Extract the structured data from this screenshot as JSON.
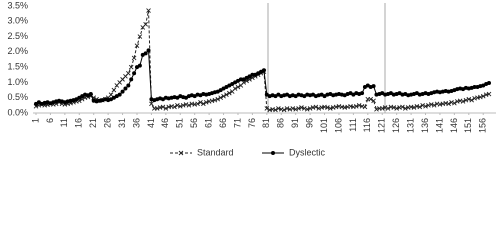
{
  "chart_data": {
    "type": "line",
    "categories": [
      "1",
      null,
      null,
      null,
      null,
      "6",
      null,
      null,
      null,
      null,
      "11",
      null,
      null,
      null,
      null,
      "16",
      null,
      null,
      null,
      null,
      "21",
      null,
      null,
      null,
      null,
      "26",
      null,
      null,
      null,
      null,
      "31",
      null,
      null,
      null,
      null,
      "36",
      null,
      null,
      null,
      null,
      "41",
      null,
      null,
      null,
      null,
      "46",
      null,
      null,
      null,
      null,
      "51",
      null,
      null,
      null,
      null,
      "56",
      null,
      null,
      null,
      null,
      "61",
      null,
      null,
      null,
      null,
      "66",
      null,
      null,
      null,
      null,
      "71",
      null,
      null,
      null,
      null,
      "76",
      null,
      null,
      null,
      null,
      "81",
      null,
      null,
      null,
      null,
      "86",
      null,
      null,
      null,
      null,
      "91",
      null,
      null,
      null,
      null,
      "96",
      null,
      null,
      null,
      null,
      "101",
      null,
      null,
      null,
      null,
      "106",
      null,
      null,
      null,
      null,
      "111",
      null,
      null,
      null,
      null,
      "116",
      null,
      null,
      null,
      null,
      "121",
      null,
      null,
      null,
      null,
      "126",
      null,
      null,
      null,
      null,
      "131",
      null,
      null,
      null,
      null,
      "136",
      null,
      null,
      null,
      null,
      "141",
      null,
      null,
      null,
      null,
      "146",
      null,
      null,
      null,
      null,
      "151",
      null,
      null,
      null,
      null,
      "156",
      null,
      null
    ],
    "series": [
      {
        "name": "Standard",
        "color": "#222222",
        "dashed": true,
        "marker": "x",
        "values": [
          0.22,
          0.25,
          0.28,
          0.25,
          0.27,
          0.3,
          0.28,
          0.3,
          0.35,
          0.3,
          0.28,
          0.3,
          0.32,
          0.35,
          0.38,
          0.4,
          0.45,
          0.5,
          0.52,
          0.55,
          0.5,
          0.45,
          0.4,
          0.42,
          0.45,
          0.5,
          0.6,
          0.75,
          0.9,
          1.0,
          1.1,
          1.2,
          1.3,
          1.5,
          1.8,
          2.2,
          2.5,
          2.8,
          2.9,
          3.35,
          0.3,
          0.15,
          0.15,
          0.18,
          0.2,
          0.15,
          0.2,
          0.22,
          0.2,
          0.25,
          0.22,
          0.25,
          0.28,
          0.25,
          0.3,
          0.28,
          0.3,
          0.35,
          0.3,
          0.35,
          0.38,
          0.4,
          0.42,
          0.45,
          0.5,
          0.55,
          0.6,
          0.65,
          0.7,
          0.8,
          0.85,
          0.9,
          1.0,
          1.05,
          1.1,
          1.15,
          1.2,
          1.25,
          1.3,
          1.35,
          0.15,
          0.1,
          0.12,
          0.1,
          0.15,
          0.12,
          0.1,
          0.15,
          0.12,
          0.15,
          0.12,
          0.15,
          0.18,
          0.15,
          0.12,
          0.15,
          0.18,
          0.2,
          0.15,
          0.18,
          0.2,
          0.18,
          0.15,
          0.18,
          0.2,
          0.22,
          0.2,
          0.18,
          0.2,
          0.22,
          0.2,
          0.22,
          0.25,
          0.22,
          0.2,
          0.45,
          0.45,
          0.4,
          0.12,
          0.15,
          0.15,
          0.18,
          0.15,
          0.2,
          0.18,
          0.15,
          0.18,
          0.2,
          0.15,
          0.18,
          0.2,
          0.18,
          0.22,
          0.2,
          0.25,
          0.22,
          0.25,
          0.28,
          0.25,
          0.3,
          0.28,
          0.3,
          0.32,
          0.3,
          0.35,
          0.32,
          0.38,
          0.4,
          0.38,
          0.42,
          0.45,
          0.42,
          0.48,
          0.5,
          0.52,
          0.55,
          0.6,
          0.62
        ]
      },
      {
        "name": "Dyslectic",
        "color": "#000000",
        "dashed": false,
        "marker": "circle",
        "values": [
          0.3,
          0.35,
          0.3,
          0.33,
          0.35,
          0.32,
          0.35,
          0.38,
          0.4,
          0.38,
          0.35,
          0.38,
          0.4,
          0.42,
          0.45,
          0.5,
          0.55,
          0.6,
          0.58,
          0.62,
          0.4,
          0.38,
          0.4,
          0.42,
          0.45,
          0.42,
          0.45,
          0.5,
          0.55,
          0.6,
          0.7,
          0.8,
          0.9,
          1.1,
          1.3,
          1.5,
          1.55,
          1.9,
          1.95,
          2.05,
          0.45,
          0.42,
          0.45,
          0.48,
          0.45,
          0.5,
          0.48,
          0.5,
          0.52,
          0.5,
          0.55,
          0.52,
          0.5,
          0.55,
          0.58,
          0.55,
          0.6,
          0.58,
          0.62,
          0.6,
          0.62,
          0.65,
          0.68,
          0.7,
          0.75,
          0.8,
          0.85,
          0.9,
          0.95,
          1.0,
          1.05,
          1.1,
          1.1,
          1.15,
          1.2,
          1.25,
          1.25,
          1.3,
          1.35,
          1.4,
          0.6,
          0.55,
          0.58,
          0.55,
          0.6,
          0.55,
          0.58,
          0.6,
          0.55,
          0.58,
          0.55,
          0.6,
          0.58,
          0.55,
          0.6,
          0.58,
          0.6,
          0.55,
          0.58,
          0.6,
          0.55,
          0.6,
          0.62,
          0.58,
          0.6,
          0.62,
          0.6,
          0.58,
          0.62,
          0.65,
          0.6,
          0.65,
          0.62,
          0.65,
          0.85,
          0.9,
          0.85,
          0.88,
          0.6,
          0.62,
          0.65,
          0.6,
          0.62,
          0.65,
          0.6,
          0.62,
          0.65,
          0.6,
          0.62,
          0.58,
          0.6,
          0.62,
          0.65,
          0.6,
          0.62,
          0.65,
          0.62,
          0.65,
          0.68,
          0.7,
          0.68,
          0.7,
          0.72,
          0.7,
          0.72,
          0.75,
          0.78,
          0.8,
          0.78,
          0.82,
          0.8,
          0.82,
          0.85,
          0.85,
          0.88,
          0.9,
          0.95,
          0.98
        ]
      }
    ],
    "ylim": [
      0,
      3.5
    ],
    "yticks": [
      {
        "value": 0,
        "label": "0.0%"
      },
      {
        "value": 0.5,
        "label": "0.5%"
      },
      {
        "value": 1,
        "label": "1.0%"
      },
      {
        "value": 1.5,
        "label": "1.5%"
      },
      {
        "value": 2,
        "label": "2.0%"
      },
      {
        "value": 2.5,
        "label": "2.5%"
      },
      {
        "value": 3,
        "label": "3.0%"
      },
      {
        "value": 3.5,
        "label": "3.5%"
      }
    ],
    "grid": false,
    "legend": "bottom"
  }
}
